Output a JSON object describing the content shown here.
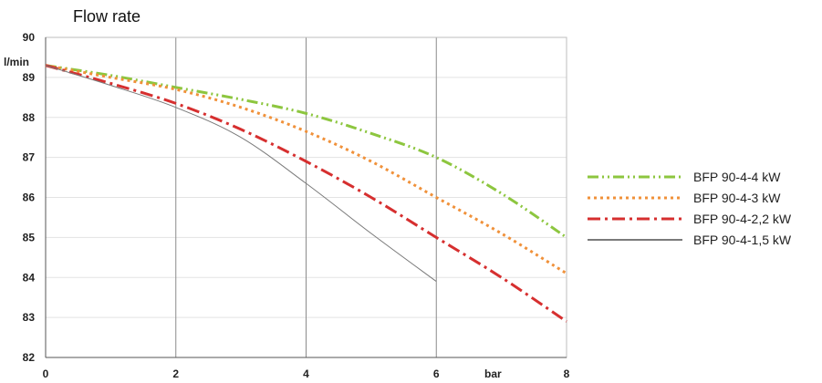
{
  "chart_data": {
    "type": "line",
    "title": "Flow rate",
    "ylabel": "l/min",
    "xlabel": "bar",
    "xlim": [
      0,
      8
    ],
    "ylim": [
      82,
      90
    ],
    "x_ticks": [
      "0",
      "2",
      "4",
      "6",
      "8"
    ],
    "y_ticks": [
      "82",
      "83",
      "84",
      "85",
      "86",
      "87",
      "88",
      "89",
      "90"
    ],
    "grid": "vertical",
    "legend_position": "right",
    "series": [
      {
        "name": "BFP 90-4-4 kW",
        "color": "#8dc63f",
        "dash": "dash-dot-dot",
        "x": [
          0,
          1,
          2,
          3,
          4,
          5,
          6,
          7,
          8
        ],
        "y": [
          89.3,
          89.05,
          88.75,
          88.45,
          88.1,
          87.6,
          87.0,
          86.1,
          85.0
        ]
      },
      {
        "name": "BFP 90-4-3 kW",
        "color": "#f0913a",
        "dash": "dotted",
        "x": [
          0,
          1,
          2,
          3,
          4,
          5,
          6,
          7,
          8
        ],
        "y": [
          89.3,
          89.0,
          88.7,
          88.25,
          87.65,
          86.9,
          86.0,
          85.1,
          84.1
        ]
      },
      {
        "name": "BFP 90-4-2,2 kW",
        "color": "#d62f2f",
        "dash": "dash-dot",
        "x": [
          0,
          1,
          2,
          3,
          4,
          5,
          6,
          7,
          8
        ],
        "y": [
          89.3,
          88.85,
          88.35,
          87.7,
          86.9,
          86.0,
          85.0,
          84.0,
          82.9
        ]
      },
      {
        "name": "BFP 90-4-1,5 kW",
        "color": "#7a7a7a",
        "dash": "solid",
        "x": [
          0,
          1,
          2,
          3,
          4,
          5,
          6
        ],
        "y": [
          89.3,
          88.8,
          88.25,
          87.5,
          86.35,
          85.1,
          83.9
        ]
      }
    ]
  }
}
